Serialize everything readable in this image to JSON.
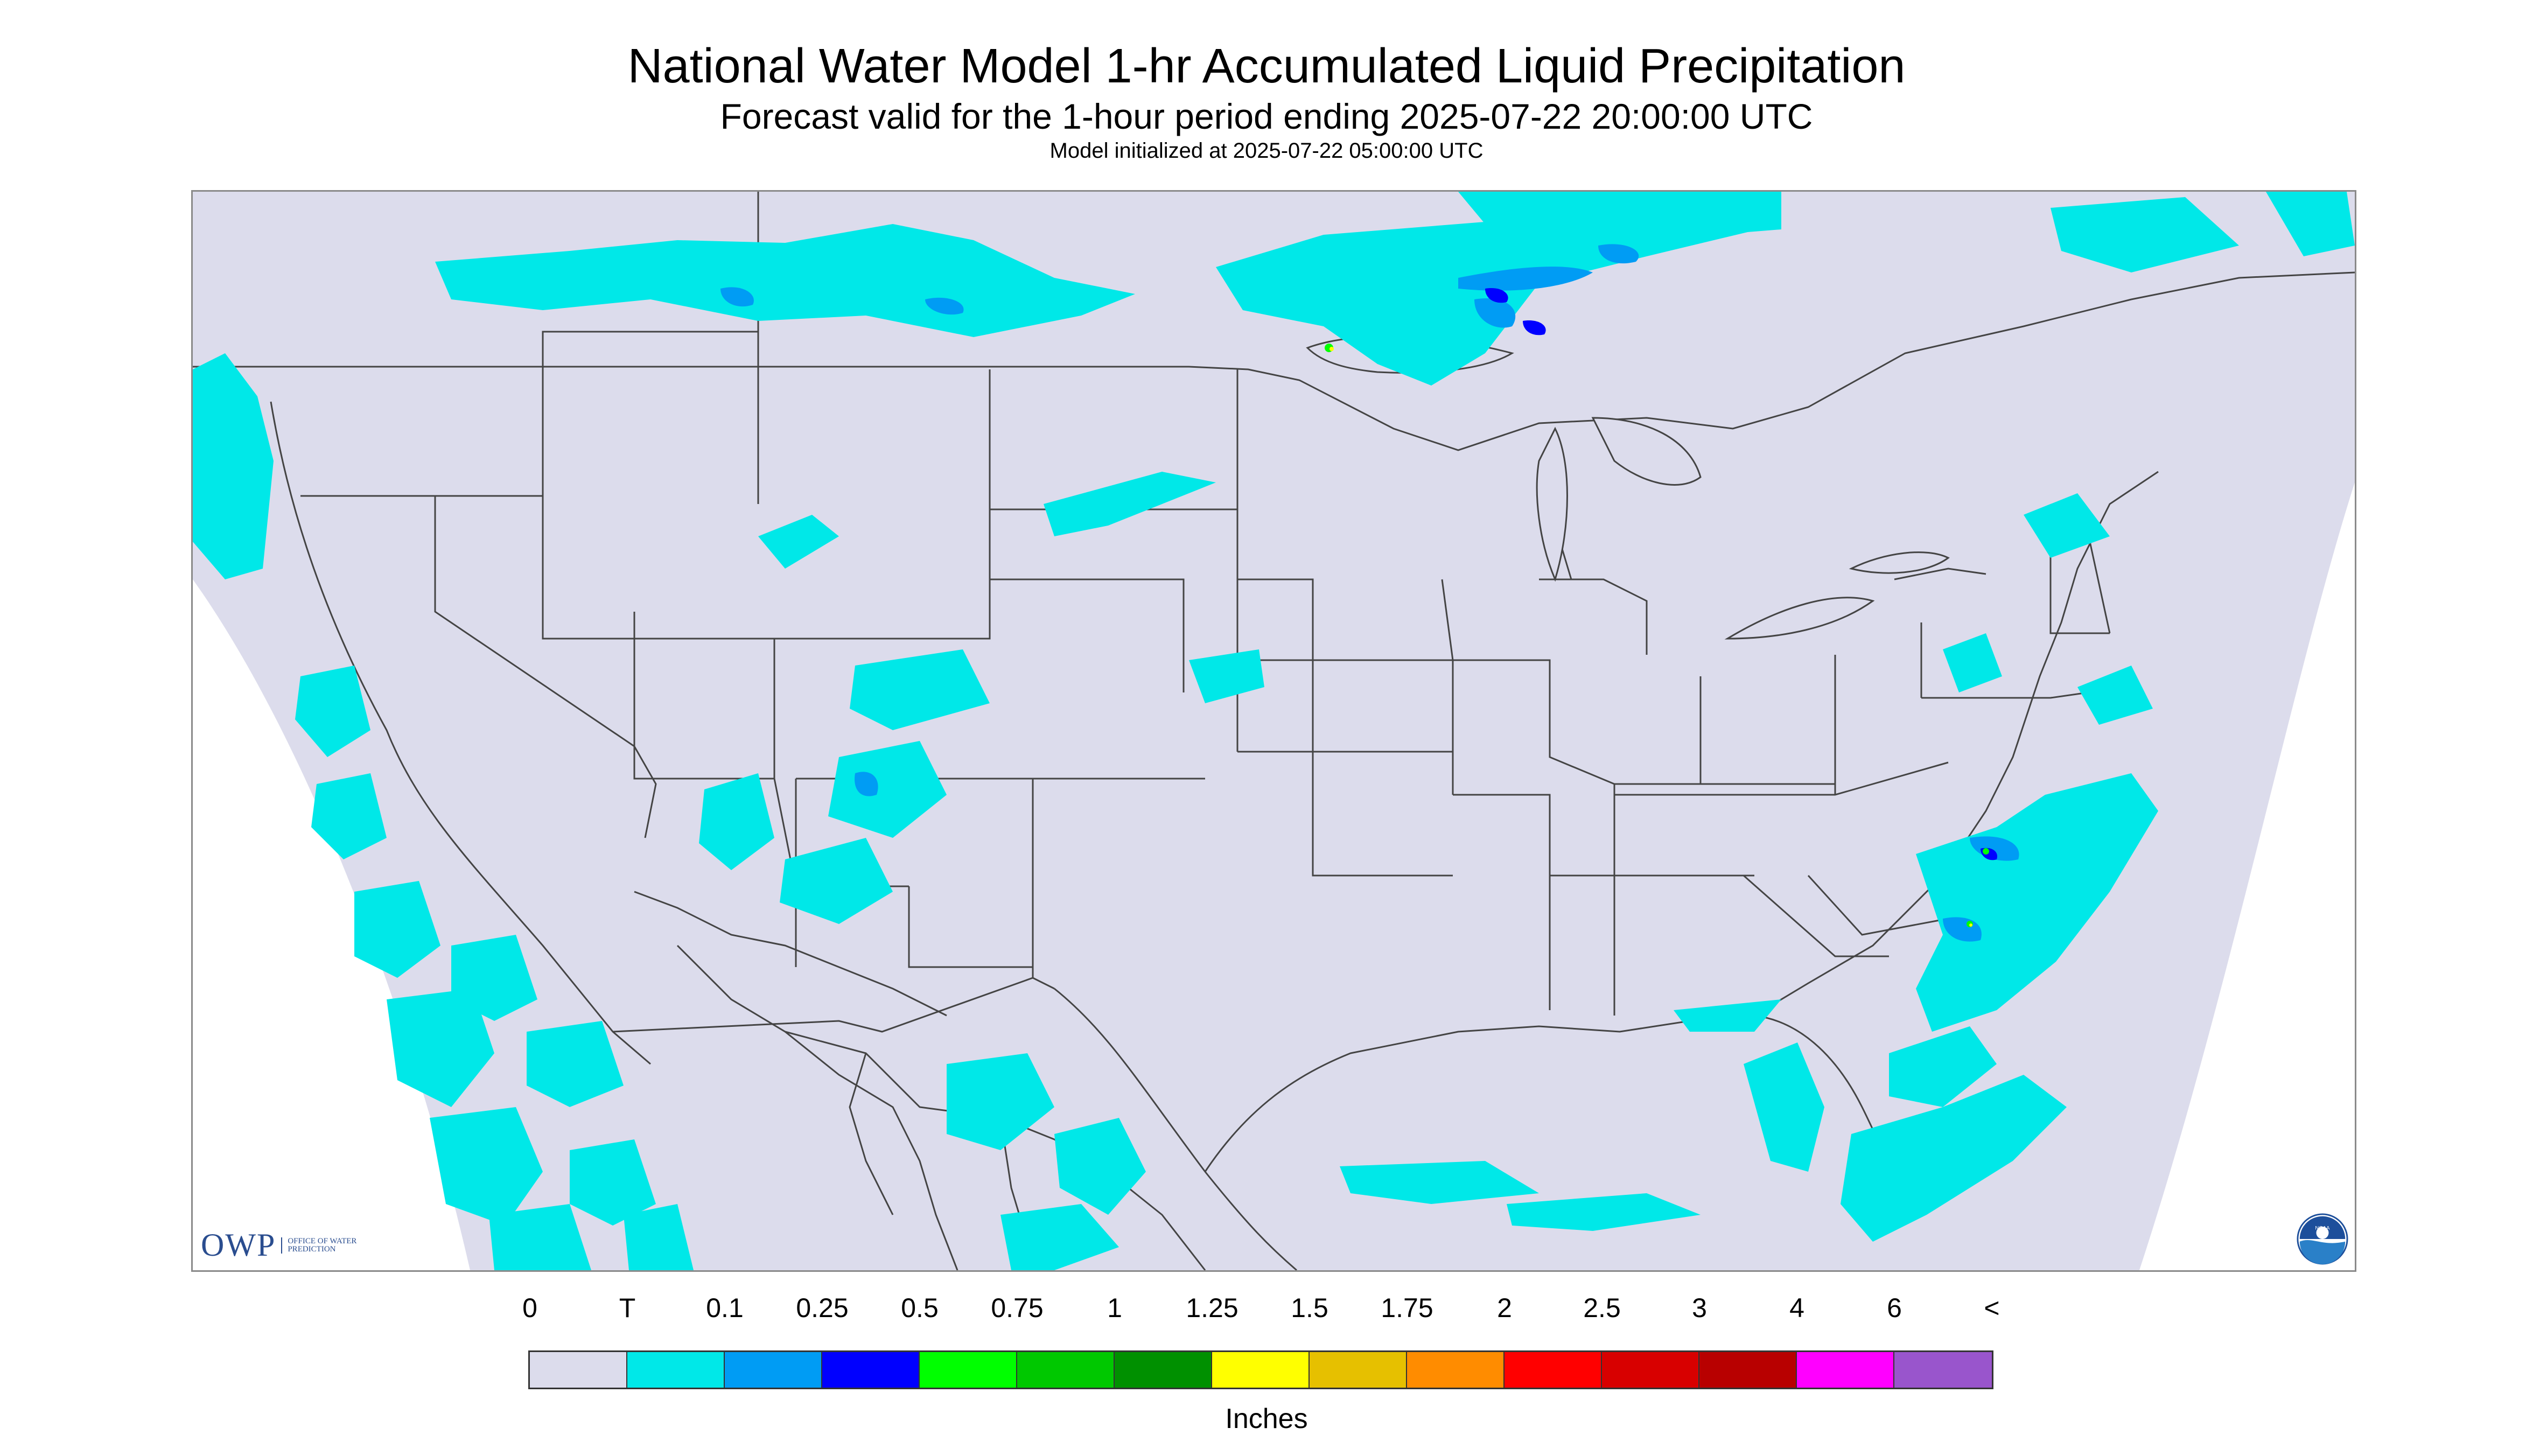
{
  "header": {
    "title": "National Water Model 1-hr Accumulated Liquid Precipitation",
    "subtitle": "Forecast valid for the 1-hour period ending 2025-07-22 20:00:00 UTC",
    "init_line": "Model initialized at 2025-07-22 05:00:00 UTC"
  },
  "logos": {
    "owp_mark": "OWP",
    "owp_text": "Office of Water Prediction",
    "noaa_text": "NOAA"
  },
  "map": {
    "background_color": "#dcdcec",
    "outside_color": "#ffffff",
    "boundary_color": "#444444"
  },
  "legend": {
    "labels": [
      "0",
      "T",
      "0.1",
      "0.25",
      "0.5",
      "0.75",
      "1",
      "1.25",
      "1.5",
      "1.75",
      "2",
      "2.5",
      "3",
      "4",
      "6",
      "<"
    ],
    "colors": [
      "#dcdcec",
      "#00e8e8",
      "#009cf4",
      "#0000ff",
      "#00ff00",
      "#00c800",
      "#009000",
      "#ffff00",
      "#e6c000",
      "#ff8c00",
      "#ff0000",
      "#d80000",
      "#b80000",
      "#ff00ff",
      "#9955cc"
    ],
    "units": "Inches"
  }
}
